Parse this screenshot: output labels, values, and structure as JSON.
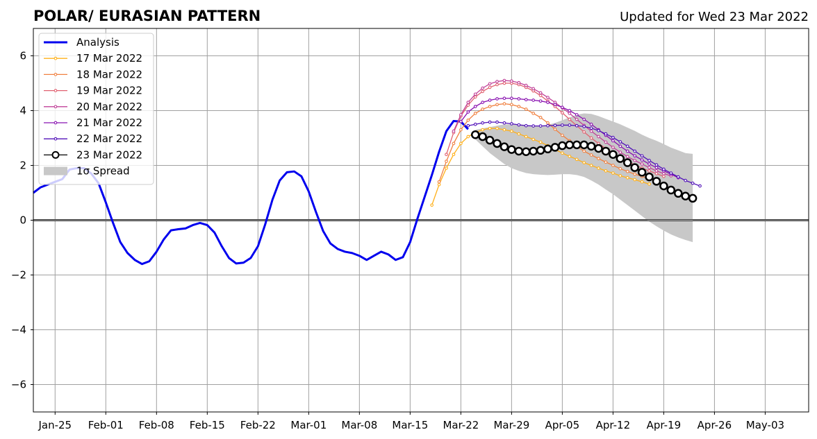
{
  "chart_data": {
    "type": "line",
    "title": "POLAR/ EURASIAN  PATTERN",
    "subtitle": "Updated for Wed 23 Mar 2022",
    "xlabel": "",
    "ylabel": "",
    "ylim": [
      -7,
      7
    ],
    "yticks": [
      -6,
      -4,
      -2,
      0,
      2,
      4,
      6
    ],
    "ytick_labels": [
      "−6",
      "−4",
      "−2",
      "0",
      "2",
      "4",
      "6"
    ],
    "xlim": [
      "2022-01-22",
      "2022-05-09"
    ],
    "xticks": [
      "2022-01-25",
      "2022-02-01",
      "2022-02-08",
      "2022-02-15",
      "2022-02-22",
      "2022-03-01",
      "2022-03-08",
      "2022-03-15",
      "2022-03-22",
      "2022-03-29",
      "2022-04-05",
      "2022-04-12",
      "2022-04-19",
      "2022-04-26",
      "2022-05-03"
    ],
    "xtick_labels": [
      "Jan-25",
      "Feb-01",
      "Feb-08",
      "Feb-15",
      "Feb-22",
      "Mar-01",
      "Mar-08",
      "Mar-15",
      "Mar-22",
      "Mar-29",
      "Apr-05",
      "Apr-12",
      "Apr-19",
      "Apr-26",
      "May-03"
    ],
    "grid": true,
    "legend_position": "upper-left",
    "legend": [
      "Analysis",
      "17 Mar 2022",
      "18 Mar 2022",
      "19 Mar 2022",
      "20 Mar 2022",
      "21 Mar 2022",
      "22 Mar 2022",
      "23 Mar 2022",
      "1σ Spread"
    ],
    "analysis": {
      "name": "Analysis",
      "color": "#0000ee",
      "start": "2022-01-22",
      "values": [
        1.0,
        1.2,
        1.3,
        1.4,
        1.5,
        1.85,
        1.9,
        1.9,
        1.7,
        1.35,
        0.65,
        -0.1,
        -0.8,
        -1.2,
        -1.45,
        -1.6,
        -1.5,
        -1.15,
        -0.7,
        -0.37,
        -0.33,
        -0.3,
        -0.18,
        -0.1,
        -0.18,
        -0.45,
        -0.95,
        -1.38,
        -1.58,
        -1.55,
        -1.38,
        -0.95,
        -0.15,
        0.75,
        1.45,
        1.75,
        1.78,
        1.6,
        1.05,
        0.3,
        -0.4,
        -0.85,
        -1.05,
        -1.15,
        -1.2,
        -1.3,
        -1.45,
        -1.3,
        -1.15,
        -1.25,
        -1.45,
        -1.35,
        -0.8,
        0.05,
        0.85,
        1.65,
        2.5,
        3.25,
        3.62,
        3.6,
        3.32
      ]
    },
    "forecasts": [
      {
        "name": "17 Mar 2022",
        "color": "#ffb019",
        "start": "2022-03-18",
        "values": [
          0.55,
          1.3,
          1.9,
          2.4,
          2.8,
          3.05,
          3.2,
          3.3,
          3.35,
          3.35,
          3.3,
          3.25,
          3.15,
          3.05,
          2.95,
          2.85,
          2.72,
          2.58,
          2.45,
          2.33,
          2.22,
          2.1,
          2.0,
          1.9,
          1.8,
          1.72,
          1.62,
          1.55,
          1.48,
          1.4,
          1.32
        ]
      },
      {
        "name": "18 Mar 2022",
        "color": "#f08040",
        "start": "2022-03-19",
        "values": [
          1.4,
          2.15,
          2.8,
          3.3,
          3.65,
          3.9,
          4.05,
          4.15,
          4.22,
          4.25,
          4.22,
          4.15,
          4.05,
          3.9,
          3.75,
          3.55,
          3.32,
          3.1,
          2.9,
          2.7,
          2.52,
          2.38,
          2.25,
          2.12,
          2.0,
          1.88,
          1.78,
          1.68,
          1.6,
          1.52,
          1.45
        ]
      },
      {
        "name": "19 Mar 2022",
        "color": "#e06070",
        "start": "2022-03-20",
        "values": [
          2.4,
          3.2,
          3.8,
          4.2,
          4.5,
          4.7,
          4.85,
          4.95,
          5.0,
          5.0,
          4.95,
          4.85,
          4.72,
          4.55,
          4.35,
          4.15,
          3.92,
          3.68,
          3.45,
          3.22,
          3.0,
          2.8,
          2.62,
          2.45,
          2.3,
          2.15,
          2.02,
          1.9,
          1.8,
          1.7,
          1.6
        ]
      },
      {
        "name": "20 Mar 2022",
        "color": "#c04098",
        "start": "2022-03-21",
        "values": [
          3.25,
          3.85,
          4.3,
          4.6,
          4.82,
          4.98,
          5.06,
          5.1,
          5.08,
          5.02,
          4.92,
          4.8,
          4.65,
          4.48,
          4.3,
          4.1,
          3.9,
          3.68,
          3.46,
          3.25,
          3.05,
          2.85,
          2.66,
          2.48,
          2.32,
          2.18,
          2.05,
          1.92,
          1.8,
          1.7,
          1.62
        ]
      },
      {
        "name": "21 Mar 2022",
        "color": "#8810b0",
        "start": "2022-03-22",
        "values": [
          3.6,
          3.95,
          4.15,
          4.3,
          4.38,
          4.43,
          4.45,
          4.45,
          4.43,
          4.4,
          4.38,
          4.35,
          4.3,
          4.22,
          4.12,
          4.0,
          3.85,
          3.68,
          3.5,
          3.3,
          3.1,
          2.9,
          2.7,
          2.52,
          2.35,
          2.2,
          2.05,
          1.92,
          1.8,
          1.68,
          1.55
        ]
      },
      {
        "name": "22 Mar 2022",
        "color": "#5010b8",
        "start": "2022-03-23",
        "values": [
          3.45,
          3.5,
          3.55,
          3.58,
          3.58,
          3.55,
          3.52,
          3.48,
          3.45,
          3.44,
          3.44,
          3.45,
          3.46,
          3.47,
          3.47,
          3.45,
          3.42,
          3.36,
          3.27,
          3.15,
          3.02,
          2.86,
          2.7,
          2.52,
          2.35,
          2.18,
          2.02,
          1.86,
          1.72,
          1.58,
          1.45,
          1.35,
          1.25
        ]
      },
      {
        "name": "23 Mar 2022",
        "color": "#000000",
        "start": "2022-03-24",
        "values": [
          3.12,
          3.05,
          2.92,
          2.8,
          2.68,
          2.58,
          2.52,
          2.5,
          2.52,
          2.55,
          2.6,
          2.66,
          2.72,
          2.75,
          2.75,
          2.75,
          2.7,
          2.62,
          2.52,
          2.4,
          2.25,
          2.1,
          1.92,
          1.75,
          1.58,
          1.42,
          1.25,
          1.1,
          0.98,
          0.88,
          0.8
        ]
      }
    ],
    "spread": {
      "name": "1σ Spread",
      "color": "#c8c8c8",
      "start": "2022-03-24",
      "upper": [
        3.3,
        3.35,
        3.4,
        3.45,
        3.5,
        3.5,
        3.5,
        3.48,
        3.45,
        3.45,
        3.48,
        3.55,
        3.65,
        3.75,
        3.85,
        3.9,
        3.88,
        3.8,
        3.7,
        3.6,
        3.5,
        3.38,
        3.26,
        3.12,
        3.0,
        2.9,
        2.78,
        2.65,
        2.55,
        2.45,
        2.42
      ],
      "lower": [
        2.95,
        2.7,
        2.45,
        2.25,
        2.05,
        1.9,
        1.8,
        1.72,
        1.68,
        1.66,
        1.65,
        1.66,
        1.68,
        1.68,
        1.65,
        1.58,
        1.45,
        1.3,
        1.12,
        0.95,
        0.75,
        0.55,
        0.35,
        0.15,
        -0.05,
        -0.22,
        -0.38,
        -0.52,
        -0.63,
        -0.72,
        -0.8
      ]
    }
  }
}
